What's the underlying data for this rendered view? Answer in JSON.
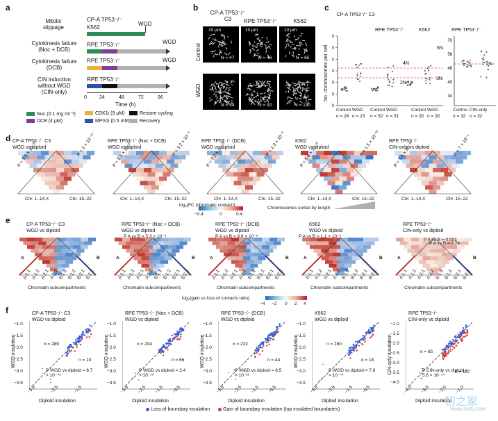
{
  "colors": {
    "noc": "#2e8b57",
    "dcb": "#7b3fa0",
    "cdk1": "#f0b040",
    "mps1": "#3050b0",
    "restore": "#111111",
    "recovery": "#b0b0b0",
    "cell": "#111111",
    "loss": "#3a5fcf",
    "gain": "#d63a3a",
    "hot": "#b2182b",
    "cold": "#2166ac"
  },
  "panels": {
    "a": "a",
    "b": "b",
    "c": "c",
    "d": "d",
    "e": "e",
    "f": "f"
  },
  "a": {
    "rows": [
      {
        "label": [
          "Mitotic",
          "slippage"
        ],
        "lines": [
          "CP-A TP53⁻/⁻",
          "K562"
        ],
        "end_label": "WGD"
      },
      {
        "label": [
          "Cytokinesis failure",
          "(Noc + DCB)"
        ],
        "lines": [
          "RPE TP53⁻/⁻"
        ],
        "end_label": "WGD"
      },
      {
        "label": [
          "Cytokinesis failure",
          "(DCB)"
        ],
        "lines": [
          "RPE TP53⁻/⁻"
        ],
        "end_label": "WGD"
      },
      {
        "label": [
          "CIN induction",
          "without WGD",
          "(CIN-only)"
        ],
        "lines": [
          "RPE TP53⁻/⁻"
        ],
        "end_label": ""
      }
    ],
    "axis_ticks": [
      "0",
      "24",
      "48",
      "72",
      "96"
    ],
    "axis_label": "Time (h)",
    "legend": [
      {
        "key": "noc",
        "label": "Noc (0.1 mg ml⁻¹)"
      },
      {
        "key": "cdk1",
        "label": "CDK1i (9 μM)"
      },
      {
        "key": "restore",
        "label": "Restore cycling"
      },
      {
        "key": "dcb",
        "label": "DCB (4 μM)"
      },
      {
        "key": "mps1",
        "label": "MPS1i (0.5 mM)"
      },
      {
        "key": "recovery",
        "label": "Recovery"
      }
    ]
  },
  "b": {
    "columns": [
      "CP-A TP53⁻/⁻ C3",
      "RPE TP53⁻/⁻",
      "K562"
    ],
    "rows": [
      "Control",
      "WGD"
    ],
    "scale": "10 μm",
    "n": [
      [
        "N = 47",
        "N = 46",
        "N = 65"
      ],
      [
        "N = 94",
        "N = 92",
        "N = 130"
      ]
    ]
  },
  "c": {
    "ylabel": "No. chromosomes per cell",
    "groups_left": [
      "CP-A TP53⁻/⁻ C3",
      "RPE TP53⁻/⁻",
      "K562"
    ],
    "group_right": "RPE TP53⁻/⁻",
    "yticks_left": [
      "0",
      "20",
      "40",
      "60",
      "80",
      "100",
      "120"
    ],
    "yticks_right": [
      "34",
      "40",
      "46",
      "58",
      "70"
    ],
    "ploidy_labels": [
      "4N",
      "2N",
      "6N",
      "3N",
      "2N"
    ],
    "xcats": [
      "Control",
      "WGD",
      "Control",
      "WGD",
      "Control",
      "WGD",
      "Control",
      "CIN-only"
    ],
    "ns": [
      "n = 28",
      "n = 23",
      "n = 52",
      "n = 51",
      "n = 32",
      "n = 32",
      "n = 32",
      "n = 32"
    ]
  },
  "d": {
    "panels": [
      {
        "title": [
          "CP-A TP53⁻/⁻ C3",
          "WGD vs diploid"
        ],
        "p1": "P = 3.9 × 10⁻¹³",
        "p2": "P = 2 × 10⁻¹⁵"
      },
      {
        "title": [
          "RPE TP53⁻/⁻ (Noc + DCB)",
          "WGD vs diploid"
        ],
        "p1": "P = 1.1 × 10⁻²⁷",
        "p2": "P = 3.2 × 10⁻⁴"
      },
      {
        "title": [
          "RPE TP53⁻/⁻ (DCB)",
          "WGD vs diploid"
        ],
        "p1": "P = 7.2 × 10⁻²⁶",
        "p2": "P = 2.3 × 10⁻³"
      },
      {
        "title": [
          "K562",
          "WGD vs diploid"
        ],
        "p1": "P = 8.6 × 10⁻¹¹",
        "p2": "P = 1.5 × 10⁻¹³"
      },
      {
        "title": [
          "RPE TP53⁻/⁻",
          "CIN-only vs diploid"
        ],
        "p1": "P = 1.5 × 10⁻¹⁹",
        "p2": "P = 7 × 10⁻⁵"
      }
    ],
    "xl1": "Chr. 1–14,X",
    "xl2": "Chr. 15–22",
    "scale_title": "log₂[FC (chromatic contact)]",
    "scale_ticks": [
      "−0.4",
      "0",
      "0.4"
    ],
    "sorted_label": "Chromosomes sorted by length"
  },
  "e": {
    "panels": [
      {
        "title": [
          "CP-A TP53⁻/⁻ C3",
          "WGD vs diploid"
        ],
        "p": ""
      },
      {
        "title": [
          "RPE TP53⁻/⁻ (Noc + DCB)",
          "WGD vs diploid"
        ],
        "p": "P A vs B = 5.3 × 10⁻⁶"
      },
      {
        "title": [
          "RPE TP53⁻/⁻ (DCB)",
          "WGD vs diploid"
        ],
        "p": "P A vs B = 9.6 × 10⁻⁶"
      },
      {
        "title": [
          "K562",
          "WGD vs diploid"
        ],
        "p": "P A vs B = 1.1 × 10⁻⁶"
      },
      {
        "title": [
          "RPE TP53⁻/⁻",
          "CIN-only vs diploid"
        ],
        "p": "P A vs B = 0.001"
      }
    ],
    "p_extra": "P A vs B = 0.74",
    "sub_labels": [
      "A.1.1",
      "A.1.2",
      "A.2.1",
      "A.2.2",
      "B.1.1",
      "B.1.2",
      "B.2.1",
      "B.2.2"
    ],
    "xlabel": "Chromatin subcompartments",
    "scale_title": "log₂(gain vs loss of contacts ratio)",
    "scale_ticks": [
      "−4",
      "−2",
      "0",
      "2",
      "4"
    ],
    "a_label": "A",
    "b_label": "B"
  },
  "f": {
    "panels": [
      {
        "title": [
          "CP-A TP53⁻/⁻ C3",
          "WGD vs diploid"
        ],
        "n1": "n = 289",
        "n2": "n = 10",
        "p": "P WGD vs diploid = 8.7 × 10⁻⁴⁹",
        "ylabel": "WGD insulation"
      },
      {
        "title": [
          "RPE TP53⁻/⁻ (Noc + DCB)",
          "WGD vs diploid"
        ],
        "n1": "n = 204",
        "n2": "n = 66",
        "p": "P WGD vs diploid = 2.4 × 10⁻¹⁹",
        "ylabel": "WGD insulation"
      },
      {
        "title": [
          "RPE TP53⁻/⁻ (DCB)",
          "WGD vs diploid"
        ],
        "n1": "n = 232",
        "n2": "n = 44",
        "p": "P WGD vs diploid = 8.5 × 10⁻³¹",
        "ylabel": "WGD insulation"
      },
      {
        "title": [
          "K562",
          "WGD vs diploid"
        ],
        "n1": "n = 280",
        "n2": "n = 18",
        "p": "P WGD vs diploid = 7.8 × 10⁻⁴⁴",
        "ylabel": "WGD insulation"
      },
      {
        "title": [
          "RPE TP53⁻/⁻",
          "CIN-only vs diploid"
        ],
        "n1": "n = 85",
        "n2": "n = 187",
        "p": "P CIN-only vs diploid = 5.6 × 10⁻¹⁴",
        "ylabel": "CIN-only insulation"
      }
    ],
    "yticks": [
      "−1.0",
      "−1.5",
      "−2.0",
      "−2.5",
      "−3.0",
      "−3.5"
    ],
    "yticks_last": [
      "−1.0",
      "−1.5",
      "−2.0",
      "−2.5",
      "−3.0",
      "−3.5",
      "−4.0"
    ],
    "xticks": [
      "−3.5",
      "−2.5",
      "−1.5"
    ],
    "xticks_wide": [
      "−3.5",
      "−2.5",
      "−1.5",
      "−0.5"
    ],
    "xticks_last": [
      "−4.0",
      "−3.0",
      "−2.0",
      "−1.0"
    ],
    "xlabel": "Diploid insulation",
    "legend_loss": "Loss of boundary insulation",
    "legend_gain": "Gain of boundary insulation (top insulated boundaries)"
  },
  "watermark": {
    "cn": "初之家",
    "url": "www.swzj.com"
  }
}
